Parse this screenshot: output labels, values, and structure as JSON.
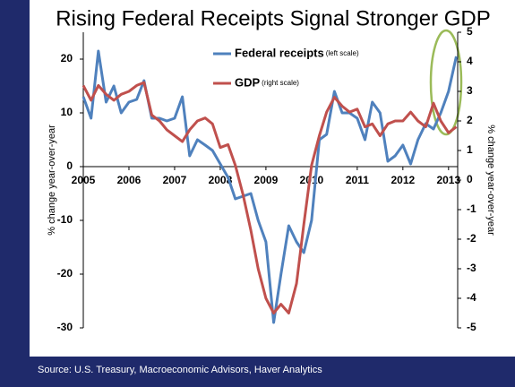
{
  "chart_data": {
    "type": "line",
    "title": "Rising Federal Receipts Signal Stronger GDP",
    "source": "Source: U.S. Treasury, Macroeconomic Advisors, Haver Analytics",
    "y_label": "% change year-over-year",
    "y2_label": "% change year-over-year",
    "x": [
      2005.0,
      2005.17,
      2005.33,
      2005.5,
      2005.67,
      2005.83,
      2006.0,
      2006.17,
      2006.33,
      2006.5,
      2006.67,
      2006.83,
      2007.0,
      2007.17,
      2007.33,
      2007.5,
      2007.67,
      2007.83,
      2008.0,
      2008.17,
      2008.33,
      2008.5,
      2008.67,
      2008.83,
      2009.0,
      2009.17,
      2009.33,
      2009.5,
      2009.67,
      2009.83,
      2010.0,
      2010.17,
      2010.33,
      2010.5,
      2010.67,
      2010.83,
      2011.0,
      2011.17,
      2011.33,
      2011.5,
      2011.67,
      2011.83,
      2012.0,
      2012.17,
      2012.33,
      2012.5,
      2012.67,
      2012.83,
      2013.0,
      2013.17
    ],
    "series": [
      {
        "name": "Federal receipts",
        "note": "(left scale)",
        "color": "#4f81bd",
        "axis": "y",
        "values": [
          13,
          9,
          21.5,
          12,
          15,
          10,
          12,
          12.5,
          16,
          9,
          9,
          8.5,
          9,
          13,
          2,
          5,
          4,
          3,
          0.5,
          -2,
          -6,
          -5.5,
          -5,
          -10,
          -14,
          -29,
          -20,
          -11,
          -14,
          -16,
          -10,
          5,
          6,
          14,
          10,
          10,
          9,
          5,
          12,
          10,
          1,
          2,
          4,
          0.5,
          5,
          8,
          7,
          10,
          14,
          20.5
        ]
      },
      {
        "name": "GDP",
        "note": "(right scale)",
        "color": "#c0504d",
        "axis": "y2",
        "values": [
          3.2,
          2.7,
          3.2,
          2.9,
          2.7,
          2.9,
          3.0,
          3.2,
          3.3,
          2.2,
          2.0,
          1.7,
          1.5,
          1.3,
          1.7,
          2.0,
          2.1,
          1.9,
          1.1,
          1.2,
          0.5,
          -0.5,
          -1.7,
          -3.0,
          -4.0,
          -4.5,
          -4.2,
          -4.5,
          -3.5,
          -1.5,
          0.5,
          1.5,
          2.3,
          2.8,
          2.5,
          2.3,
          2.4,
          1.8,
          1.9,
          1.5,
          1.9,
          2.0,
          2.0,
          2.3,
          2.0,
          1.8,
          2.6,
          2.0,
          1.6,
          1.8
        ]
      }
    ],
    "xlim": [
      2005,
      2013.2
    ],
    "xticks": [
      2005,
      2006,
      2007,
      2008,
      2009,
      2010,
      2011,
      2012,
      2013
    ],
    "ylim": [
      -30,
      25
    ],
    "yticks": [
      -30,
      -20,
      -10,
      0,
      10,
      20
    ],
    "y2lim": [
      -5,
      5
    ],
    "y2ticks": [
      -5,
      -4,
      -3,
      -2,
      -1,
      0,
      1,
      2,
      3,
      4,
      5
    ]
  }
}
